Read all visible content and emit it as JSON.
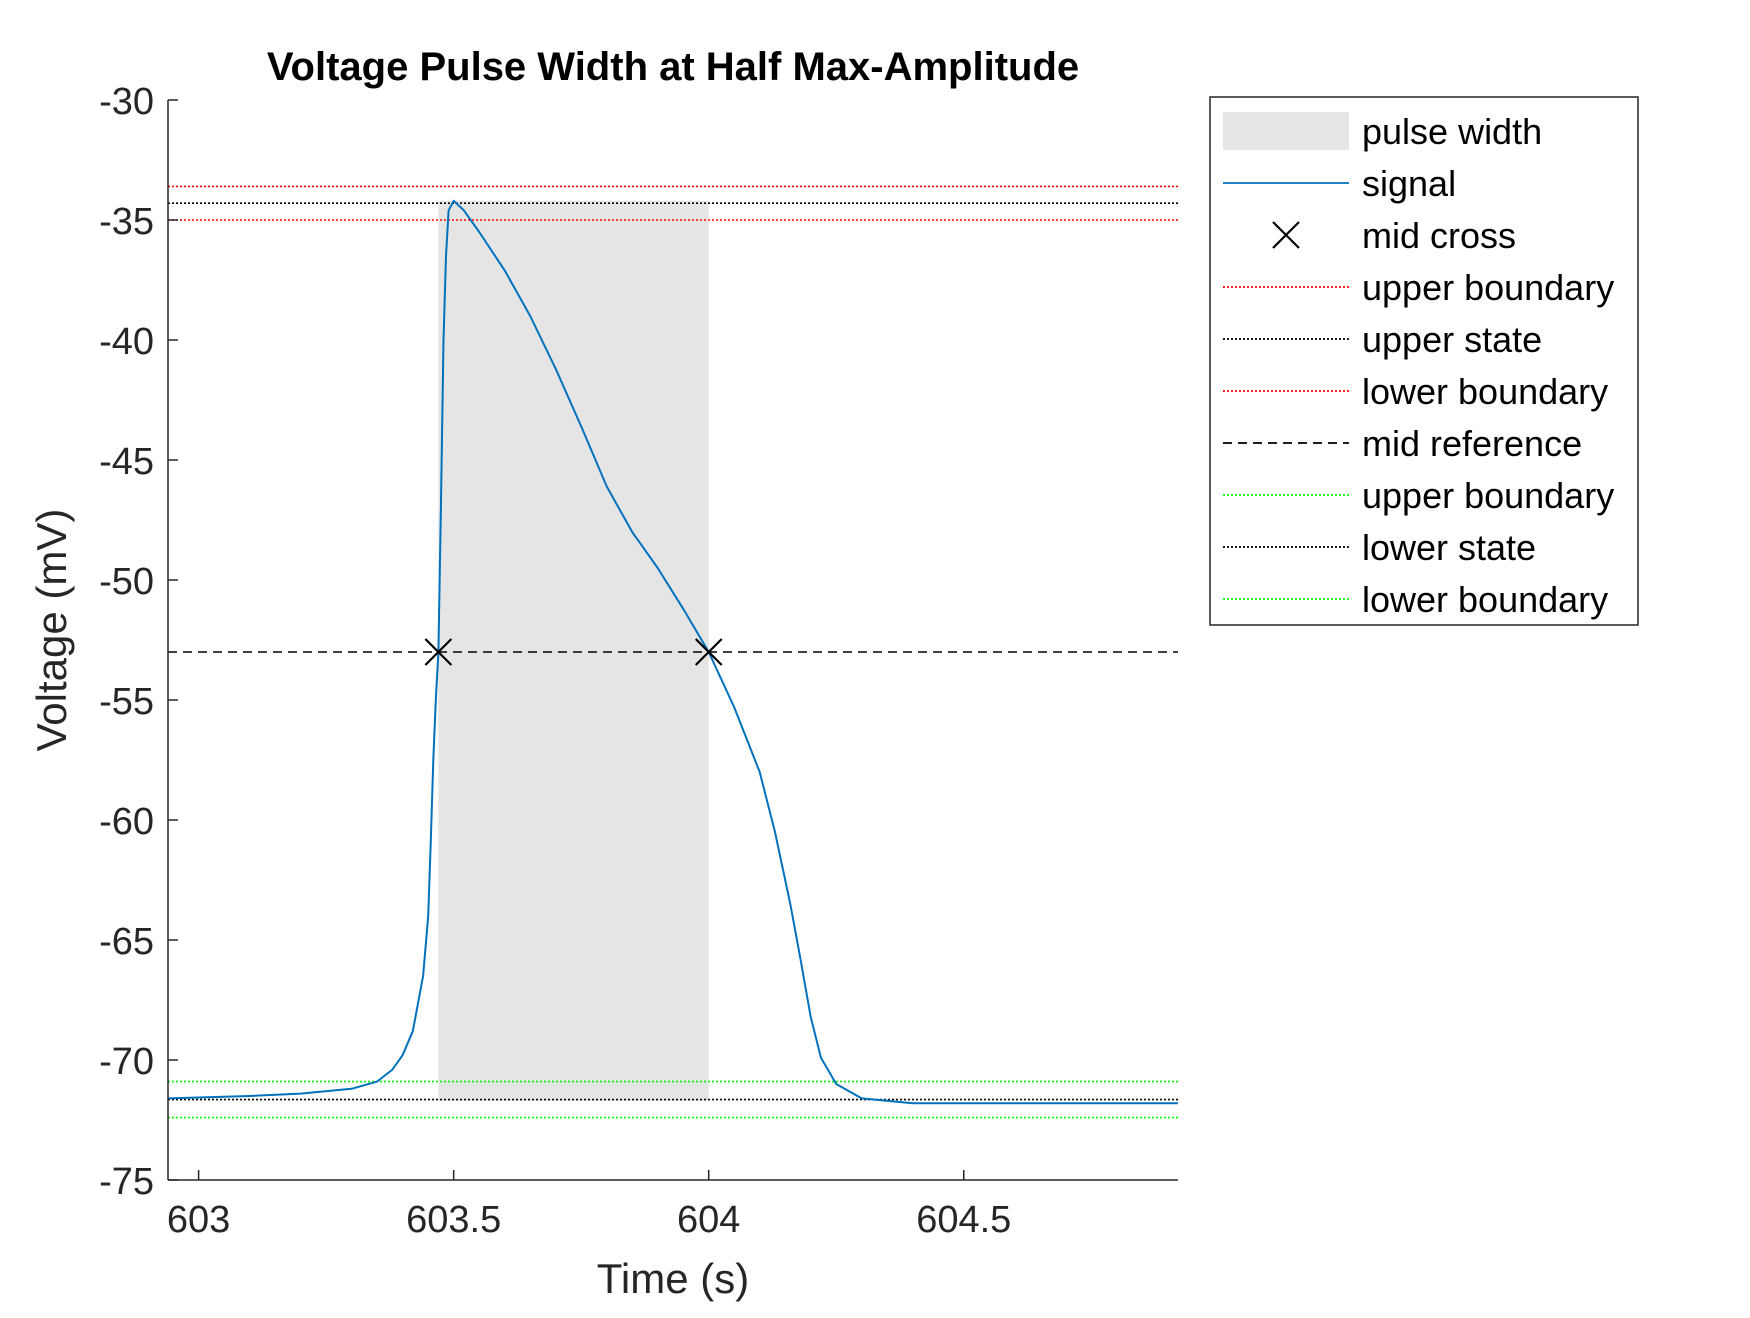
{
  "chart_data": {
    "type": "line",
    "title": "Voltage Pulse Width at Half Max-Amplitude",
    "xlabel": "Time (s)",
    "ylabel": "Voltage (mV)",
    "xlim": [
      602.94,
      604.92
    ],
    "ylim": [
      -75,
      -30
    ],
    "xticks": [
      603,
      603.5,
      604,
      604.5
    ],
    "xtick_labels": [
      "603",
      "603.5",
      "604",
      "604.5"
    ],
    "yticks": [
      -30,
      -35,
      -40,
      -45,
      -50,
      -55,
      -60,
      -65,
      -70,
      -75
    ],
    "ytick_labels": [
      "-30",
      "-35",
      "-40",
      "-45",
      "-50",
      "-55",
      "-60",
      "-65",
      "-70",
      "-75"
    ],
    "grid": false,
    "legend_position": "outside-top-right",
    "pulse_width": {
      "name": "pulse width",
      "x_start": 603.47,
      "x_end": 604.0,
      "y_bottom": -71.7,
      "y_top": -34.2,
      "color": "#e5e5e5"
    },
    "signal": {
      "name": "signal",
      "color": "#0072bd",
      "x": [
        602.94,
        603.1,
        603.2,
        603.3,
        603.35,
        603.38,
        603.4,
        603.42,
        603.44,
        603.45,
        603.455,
        603.46,
        603.465,
        603.47,
        603.475,
        603.48,
        603.485,
        603.49,
        603.5,
        603.52,
        603.55,
        603.6,
        603.65,
        603.7,
        603.75,
        603.8,
        603.85,
        603.9,
        603.95,
        604.0,
        604.05,
        604.1,
        604.13,
        604.16,
        604.18,
        604.2,
        604.22,
        604.25,
        604.3,
        604.4,
        604.5,
        604.7,
        604.92
      ],
      "y": [
        -71.6,
        -71.5,
        -71.4,
        -71.2,
        -70.9,
        -70.4,
        -69.8,
        -68.8,
        -66.5,
        -64,
        -61,
        -57.5,
        -55,
        -53,
        -47,
        -40,
        -36.5,
        -34.6,
        -34.2,
        -34.6,
        -35.5,
        -37.1,
        -39.0,
        -41.2,
        -43.6,
        -46.1,
        -48.0,
        -49.5,
        -51.2,
        -53.0,
        -55.3,
        -58.0,
        -60.5,
        -63.5,
        -65.8,
        -68.2,
        -69.9,
        -71.0,
        -71.6,
        -71.8,
        -71.8,
        -71.8,
        -71.8
      ]
    },
    "mid_cross": {
      "name": "mid cross",
      "x": [
        603.47,
        604.0
      ],
      "y": [
        -53,
        -53
      ]
    },
    "reference_lines": [
      {
        "name": "upper boundary",
        "y": -33.6,
        "color": "#ff0000",
        "style": "dotted"
      },
      {
        "name": "upper state",
        "y": -34.3,
        "color": "#000000",
        "style": "dotted"
      },
      {
        "name": "lower boundary",
        "y": -35.0,
        "color": "#ff0000",
        "style": "dotted"
      },
      {
        "name": "mid reference",
        "y": -53.0,
        "color": "#000000",
        "style": "dashed"
      },
      {
        "name": "upper boundary",
        "y": -70.9,
        "color": "#00ff00",
        "style": "dotted"
      },
      {
        "name": "lower state",
        "y": -71.65,
        "color": "#000000",
        "style": "dotted"
      },
      {
        "name": "lower boundary",
        "y": -72.4,
        "color": "#00ff00",
        "style": "dotted"
      }
    ]
  },
  "legend": {
    "items": [
      {
        "label": "pulse width",
        "kind": "patch",
        "color": "#e5e5e5"
      },
      {
        "label": "signal",
        "kind": "line",
        "color": "#0072bd",
        "style": "solid"
      },
      {
        "label": "mid cross",
        "kind": "marker",
        "color": "#000000"
      },
      {
        "label": "upper boundary",
        "kind": "line",
        "color": "#ff0000",
        "style": "dotted"
      },
      {
        "label": "upper state",
        "kind": "line",
        "color": "#000000",
        "style": "dotted"
      },
      {
        "label": "lower boundary",
        "kind": "line",
        "color": "#ff0000",
        "style": "dotted"
      },
      {
        "label": "mid reference",
        "kind": "line",
        "color": "#000000",
        "style": "dashed"
      },
      {
        "label": "upper boundary",
        "kind": "line",
        "color": "#00ff00",
        "style": "dotted"
      },
      {
        "label": "lower state",
        "kind": "line",
        "color": "#000000",
        "style": "dotted"
      },
      {
        "label": "lower boundary",
        "kind": "line",
        "color": "#00ff00",
        "style": "dotted"
      }
    ]
  }
}
